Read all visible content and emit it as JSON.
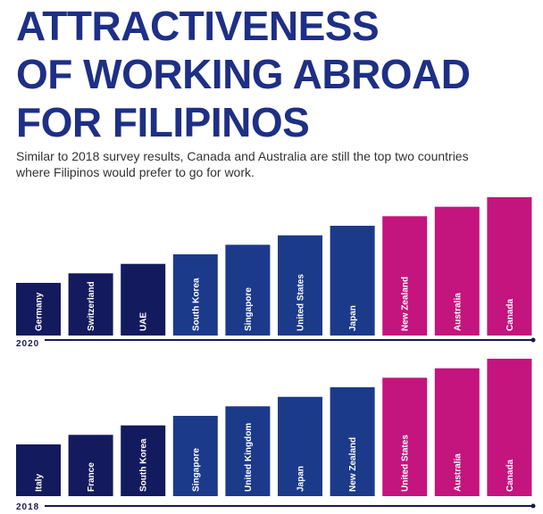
{
  "header": {
    "title_lines": [
      "ATTRACTIVENESS",
      "OF WORKING ABROAD",
      "FOR FILIPINOS"
    ],
    "subtitle_lines": [
      "Similar to 2018 survey results, Canada and Australia are still the top two countries",
      "where Filipinos would prefer to go for work."
    ]
  },
  "colors": {
    "title": "#1e2f86",
    "navy": "#141a5e",
    "blue": "#1c3a8a",
    "magenta": "#c4147e",
    "axis": "#1a1a4e"
  },
  "chart_data": [
    {
      "type": "bar",
      "year": "2020",
      "categories": [
        "Germany",
        "Switzerland",
        "UAE",
        "South Korea",
        "Singapore",
        "United States",
        "Japan",
        "New Zealand",
        "Australia",
        "Canada"
      ],
      "rank": [
        1,
        2,
        3,
        4,
        5,
        6,
        7,
        8,
        9,
        10
      ],
      "color_groups": [
        "navy",
        "navy",
        "navy",
        "blue",
        "blue",
        "blue",
        "blue",
        "magenta",
        "magenta",
        "magenta"
      ],
      "xlabel": "2020"
    },
    {
      "type": "bar",
      "year": "2018",
      "categories": [
        "Italy",
        "France",
        "South Korea",
        "Singapore",
        "United Kingdom",
        "Japan",
        "New Zealand",
        "United States",
        "Australia",
        "Canada"
      ],
      "rank": [
        1,
        2,
        3,
        4,
        5,
        6,
        7,
        8,
        9,
        10
      ],
      "color_groups": [
        "navy",
        "navy",
        "navy",
        "blue",
        "blue",
        "blue",
        "blue",
        "magenta",
        "magenta",
        "magenta"
      ],
      "xlabel": "2018"
    }
  ]
}
